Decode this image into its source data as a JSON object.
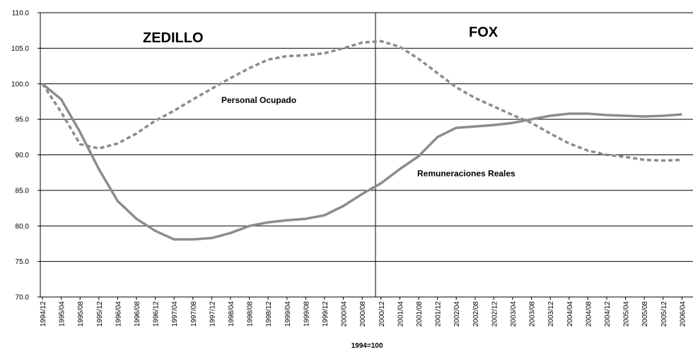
{
  "chart_data": {
    "type": "line",
    "categories": [
      "1994/12",
      "1995/04",
      "1995/08",
      "1995/12",
      "1996/04",
      "1996/08",
      "1996/12",
      "1997/04",
      "1997/08",
      "1997/12",
      "1998/04",
      "1998/08",
      "1998/12",
      "1999/04",
      "1999/08",
      "1999/12",
      "2000/04",
      "2000/08",
      "2000/12",
      "2001/04",
      "2001/08",
      "2001/12",
      "2002/04",
      "2002/08",
      "2002/12",
      "2003/04",
      "2003/08",
      "2003/12",
      "2004/04",
      "2004/08",
      "2004/12",
      "2005/04",
      "2005/08",
      "2005/12",
      "2006/04"
    ],
    "series": [
      {
        "name": "Personal Ocupado",
        "color": "#8c8c8c",
        "dashed": true,
        "values": [
          100,
          96,
          91.5,
          90.9,
          91.6,
          93,
          94.8,
          96.2,
          97.8,
          99.3,
          100.8,
          102.2,
          103.4,
          103.9,
          104,
          104.3,
          105,
          105.8,
          106,
          105.2,
          103.5,
          101.5,
          99.5,
          98,
          96.8,
          95.6,
          94.5,
          93,
          91.6,
          90.6,
          90,
          89.7,
          89.3,
          89.2,
          89.3
        ]
      },
      {
        "name": "Remuneraciones Reales",
        "color": "#8c8c8c",
        "dashed": false,
        "values": [
          100,
          97.8,
          93.2,
          88,
          83.5,
          81,
          79.3,
          78.1,
          78.1,
          78.3,
          79,
          80,
          80.5,
          80.8,
          81,
          81.5,
          82.8,
          84.5,
          86,
          88,
          89.8,
          92.5,
          93.8,
          94,
          94.2,
          94.5,
          95,
          95.5,
          95.8,
          95.8,
          95.6,
          95.5,
          95.4,
          95.5,
          95.7
        ]
      }
    ],
    "xlabel": "1994=100",
    "annotations": [
      "ZEDILLO",
      "FOX"
    ],
    "ylim": [
      70,
      110
    ],
    "yticks": [
      {
        "value": 70,
        "label": "70.0"
      },
      {
        "value": 75,
        "label": "75.0"
      },
      {
        "value": 80,
        "label": "80.0"
      },
      {
        "value": 85,
        "label": "85.0"
      },
      {
        "value": 90,
        "label": "90.0"
      },
      {
        "value": 95,
        "label": "95.0"
      },
      {
        "value": 100,
        "label": "100.0"
      },
      {
        "value": 105,
        "label": "105.0"
      },
      {
        "value": 110,
        "label": "110.0"
      }
    ],
    "grid": true
  }
}
